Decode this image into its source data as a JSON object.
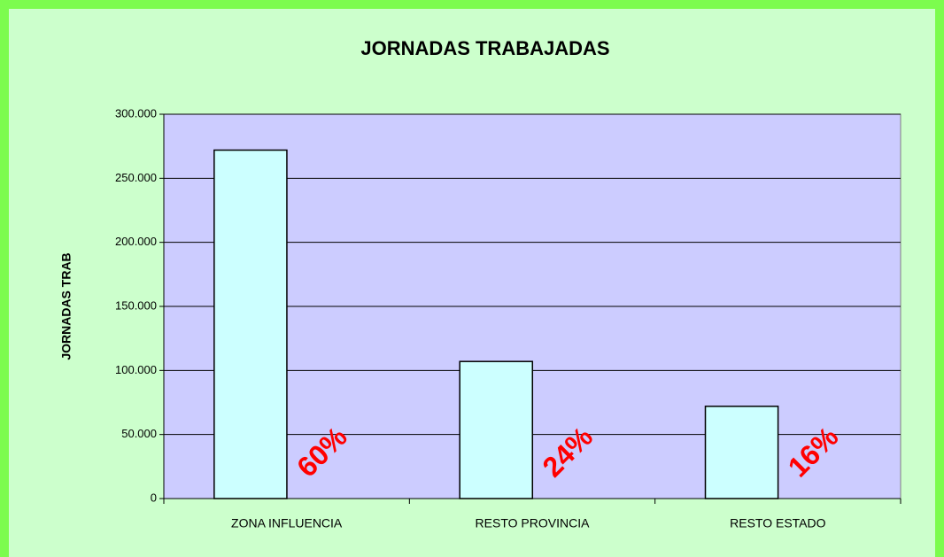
{
  "chart_data": {
    "type": "bar",
    "title": "JORNADAS TRABAJADAS",
    "y_label": "JORNADAS TRAB",
    "categories": [
      "ZONA INFLUENCIA",
      "RESTO PROVINCIA",
      "RESTO ESTADO"
    ],
    "values": [
      272000,
      107000,
      72000
    ],
    "annotations": [
      "60%",
      "24%",
      "16%"
    ],
    "color": "#ccffff",
    "annotation_color": "#ff0000",
    "plot_background": "#ccccff",
    "ylim": [
      0,
      300000
    ],
    "yticks": [
      0,
      {
        "value": 50000,
        "label": "50.000"
      },
      {
        "value": 100000,
        "label": "100.000"
      },
      {
        "value": 150000,
        "label": "150.000"
      },
      {
        "value": 200000,
        "label": "200.000"
      },
      {
        "value": 250000,
        "label": "250.000"
      },
      {
        "value": 300000,
        "label": "300.000"
      }
    ],
    "grid": true
  }
}
